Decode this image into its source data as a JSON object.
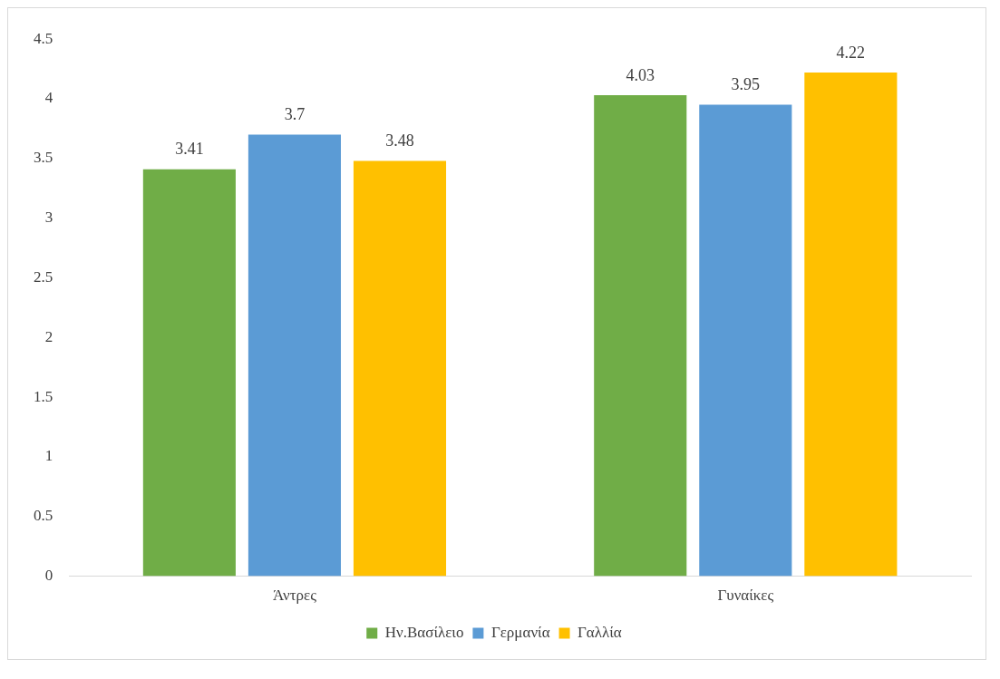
{
  "chart_data": {
    "type": "bar",
    "categories": [
      "Άντρες",
      "Γυναίκες"
    ],
    "series": [
      {
        "name": "Ην.Βασίλειο",
        "color": "#70ad47",
        "values": [
          3.41,
          4.03
        ]
      },
      {
        "name": "Γερμανία",
        "color": "#5b9bd5",
        "values": [
          3.7,
          3.95
        ]
      },
      {
        "name": "Γαλλία",
        "color": "#ffc000",
        "values": [
          3.48,
          4.22
        ]
      }
    ],
    "ylim": [
      0,
      4.5
    ],
    "yticks": [
      0,
      0.5,
      1,
      1.5,
      2,
      2.5,
      3,
      3.5,
      4,
      4.5
    ],
    "grid": false,
    "legend": "bottom",
    "data_labels": true
  }
}
